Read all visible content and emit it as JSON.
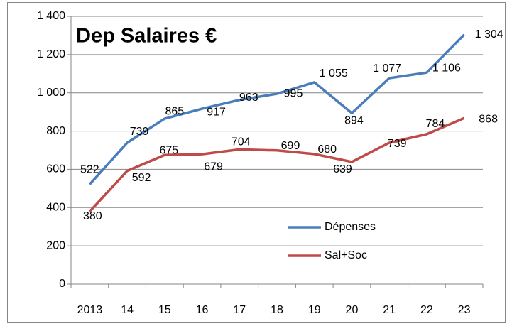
{
  "chart_data": {
    "type": "line",
    "title": "Dep Salaires €",
    "categories": [
      "2013",
      "14",
      "15",
      "16",
      "17",
      "18",
      "19",
      "20",
      "21",
      "22",
      "23"
    ],
    "series": [
      {
        "name": "Dépenses",
        "color": "#4a7ebb",
        "values": [
          522,
          739,
          865,
          917,
          963,
          995,
          1055,
          894,
          1077,
          1106,
          1304
        ],
        "value_labels": [
          "522",
          "739",
          "865",
          "917",
          "963",
          "995",
          "1 055",
          "894",
          "1 077",
          "1 106",
          "1 304"
        ]
      },
      {
        "name": "Sal+Soc",
        "color": "#be4b48",
        "values": [
          380,
          592,
          675,
          679,
          704,
          699,
          680,
          639,
          739,
          784,
          868
        ]
      }
    ],
    "ylim": [
      0,
      1400
    ],
    "yticks": [
      0,
      200,
      400,
      600,
      800,
      {
        "value": 1000,
        "label": "1 000"
      },
      {
        "value": 1200,
        "label": "1 200"
      },
      {
        "value": 1400,
        "label": "1 400"
      }
    ],
    "grid": true,
    "legend": "right"
  }
}
